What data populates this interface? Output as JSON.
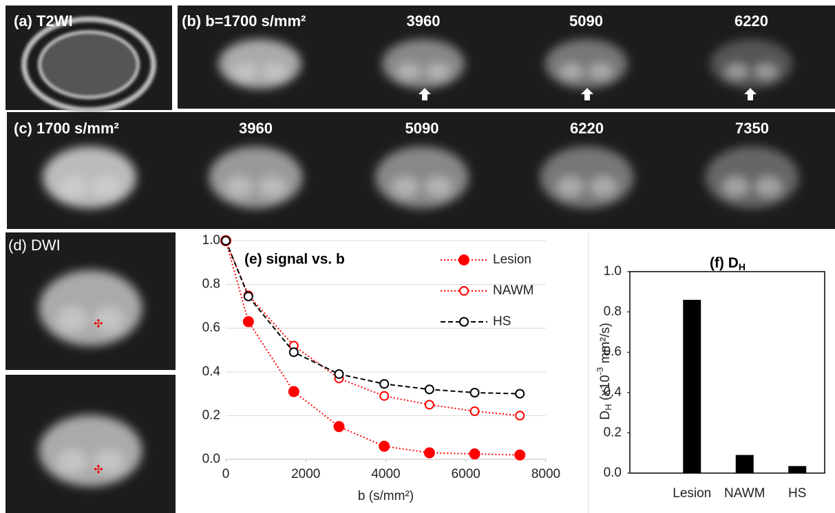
{
  "panels": {
    "a": "(a)  T2WI",
    "b_labels": [
      "(b) b=1700 s/mm²",
      "3960",
      "5090",
      "6220"
    ],
    "c_labels": [
      "(c)  1700 s/mm²",
      "3960",
      "5090",
      "6220",
      "7350"
    ],
    "d": "(d) DWI"
  },
  "chart_data": [
    {
      "type": "line",
      "title": "(e) signal vs. b",
      "x_label": "b (s/mm²)",
      "x": [
        0,
        565,
        1700,
        2830,
        3960,
        5090,
        6220,
        7350
      ],
      "series": [
        {
          "name": "Lesion",
          "color": "#ff0000",
          "marker": "filled",
          "line_style": "dotted",
          "values": [
            1.0,
            0.63,
            0.31,
            0.15,
            0.06,
            0.03,
            0.025,
            0.02
          ]
        },
        {
          "name": "NAWM",
          "color": "#ff0000",
          "marker": "open",
          "line_style": "dotted",
          "values": [
            1.0,
            0.75,
            0.52,
            0.37,
            0.29,
            0.25,
            0.22,
            0.2
          ]
        },
        {
          "name": "HS",
          "color": "#000000",
          "marker": "open",
          "line_style": "dashed",
          "values": [
            1.0,
            0.745,
            0.49,
            0.39,
            0.345,
            0.32,
            0.305,
            0.3
          ]
        }
      ],
      "xlim": [
        0,
        8000
      ],
      "xticks": [
        0,
        2000,
        4000,
        6000,
        8000
      ],
      "ylim": [
        0,
        1
      ],
      "yticks": [
        {
          "value": 0,
          "label": "0.0"
        },
        {
          "value": 0.2,
          "label": "0.2"
        },
        {
          "value": 0.4,
          "label": "0.4"
        },
        {
          "value": 0.6,
          "label": "0.6"
        },
        {
          "value": 0.8,
          "label": "0.8"
        },
        {
          "value": 1,
          "label": "1.0"
        }
      ],
      "grid": true,
      "legend": "upper right"
    },
    {
      "type": "bar",
      "title": "(f) D",
      "title_sub": "H",
      "y_label": [
        "D",
        "H",
        " (x10",
        "-3",
        " mm²/s)"
      ],
      "categories": [
        "Lesion",
        "NAWM",
        "HS"
      ],
      "values": [
        0.86,
        0.09,
        0.035
      ],
      "color": "#000000",
      "ylim": [
        0,
        1
      ],
      "yticks": [
        {
          "value": 0,
          "label": "0.0"
        },
        {
          "value": 0.2,
          "label": "0.2"
        },
        {
          "value": 0.4,
          "label": "0.4"
        },
        {
          "value": 0.6,
          "label": "0.6"
        },
        {
          "value": 0.8,
          "label": "0.8"
        },
        {
          "value": 1,
          "label": "1.0"
        }
      ],
      "grid": false
    }
  ]
}
